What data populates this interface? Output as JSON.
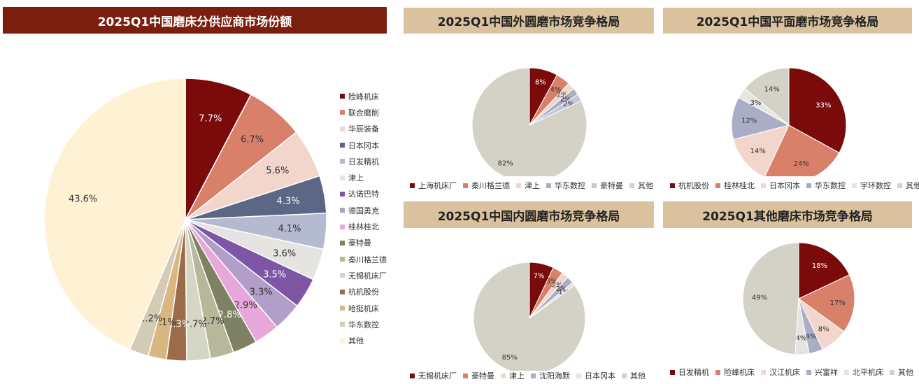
{
  "chart_data": [
    {
      "type": "pie",
      "title": "2025Q1中国磨床分供应商市场份额",
      "labels": [
        "险峰机床",
        "联合磨削",
        "华辰装备",
        "日本冈本",
        "日发精机",
        "津上",
        "达诺巴特",
        "德国勇克",
        "桂林桂北",
        "豪特曼",
        "秦川格兰德",
        "无锡机床厂",
        "杭机股份",
        "哈挺机床",
        "华东数控",
        "其他"
      ],
      "values": [
        7.7,
        6.7,
        5.6,
        4.3,
        4.1,
        3.6,
        3.5,
        3.3,
        2.9,
        2.8,
        2.7,
        2.7,
        2.3,
        2.1,
        2.2,
        43.6
      ],
      "value_labels": [
        "7.7%",
        "6.7%",
        "5.6%",
        "4.3%",
        "4.1%",
        "3.6%",
        "3.5%",
        "3.3%",
        "2.9%",
        "2.8%",
        "2.7%",
        "2.7%",
        "2.3%",
        "2.1%",
        "2.2%",
        "43.6%"
      ],
      "colors": [
        "#7b0b0b",
        "#d9806a",
        "#f2d6cc",
        "#5c6785",
        "#b4bad0",
        "#e5e4e0",
        "#7d57a6",
        "#b29ec8",
        "#e8a7db",
        "#7e8262",
        "#b7b89a",
        "#d5d6c3",
        "#9b6b4a",
        "#d9b782",
        "#d4cbb5",
        "#fff1d4"
      ],
      "legend": "right"
    },
    {
      "type": "pie",
      "title": "2025Q1中国外圆磨市场竞争格局",
      "labels": [
        "上海机床厂",
        "秦川格兰德",
        "津上",
        "华东数控",
        "豪特曼",
        "其他"
      ],
      "values": [
        8,
        4,
        2,
        2,
        2,
        82
      ],
      "value_labels": [
        "8%",
        "4%",
        "2%",
        "2%",
        "2%",
        "82%"
      ],
      "colors": [
        "#7b0b0b",
        "#d9806a",
        "#f2d6cc",
        "#a9aec6",
        "#c2c6d8",
        "#d4d2c7"
      ],
      "legend": "bottom"
    },
    {
      "type": "pie",
      "title": "2025Q1中国平面磨市场竞争格局",
      "labels": [
        "杭机股份",
        "桂林桂北",
        "日本冈本",
        "华东数控",
        "宇环数控",
        "其他"
      ],
      "values": [
        33,
        24,
        14,
        12,
        3,
        14
      ],
      "value_labels": [
        "33%",
        "24%",
        "14%",
        "12%",
        "3%",
        "14%"
      ],
      "colors": [
        "#7b0b0b",
        "#d9806a",
        "#f2d6cc",
        "#a9aec6",
        "#e5e4e0",
        "#d4d2c7"
      ],
      "legend": "bottom"
    },
    {
      "type": "pie",
      "title": "2025Q1中国内圆磨市场竞争格局",
      "labels": [
        "无锡机床厂",
        "豪特曼",
        "津上",
        "沈阳海默",
        "日本冈本",
        "其他"
      ],
      "values": [
        7,
        3,
        2,
        2,
        1,
        85
      ],
      "value_labels": [
        "7%",
        "3%",
        "2%",
        "2%",
        "1%",
        "85%"
      ],
      "colors": [
        "#7b0b0b",
        "#d9806a",
        "#f2d6cc",
        "#a9aec6",
        "#e5e4e0",
        "#d4d2c7"
      ],
      "legend": "bottom"
    },
    {
      "type": "pie",
      "title": "2025Q1其他磨床市场竞争格局",
      "labels": [
        "日发精机",
        "险峰机床",
        "汉江机床",
        "兴富祥",
        "北平机床",
        "其他"
      ],
      "values": [
        18,
        17,
        8,
        4,
        4,
        49
      ],
      "value_labels": [
        "18%",
        "17%",
        "8%",
        "4%",
        "4%",
        "49%"
      ],
      "colors": [
        "#7b0b0b",
        "#d9806a",
        "#f2d6cc",
        "#a9aec6",
        "#e5e4e0",
        "#d4d2c7"
      ],
      "legend": "bottom"
    }
  ]
}
